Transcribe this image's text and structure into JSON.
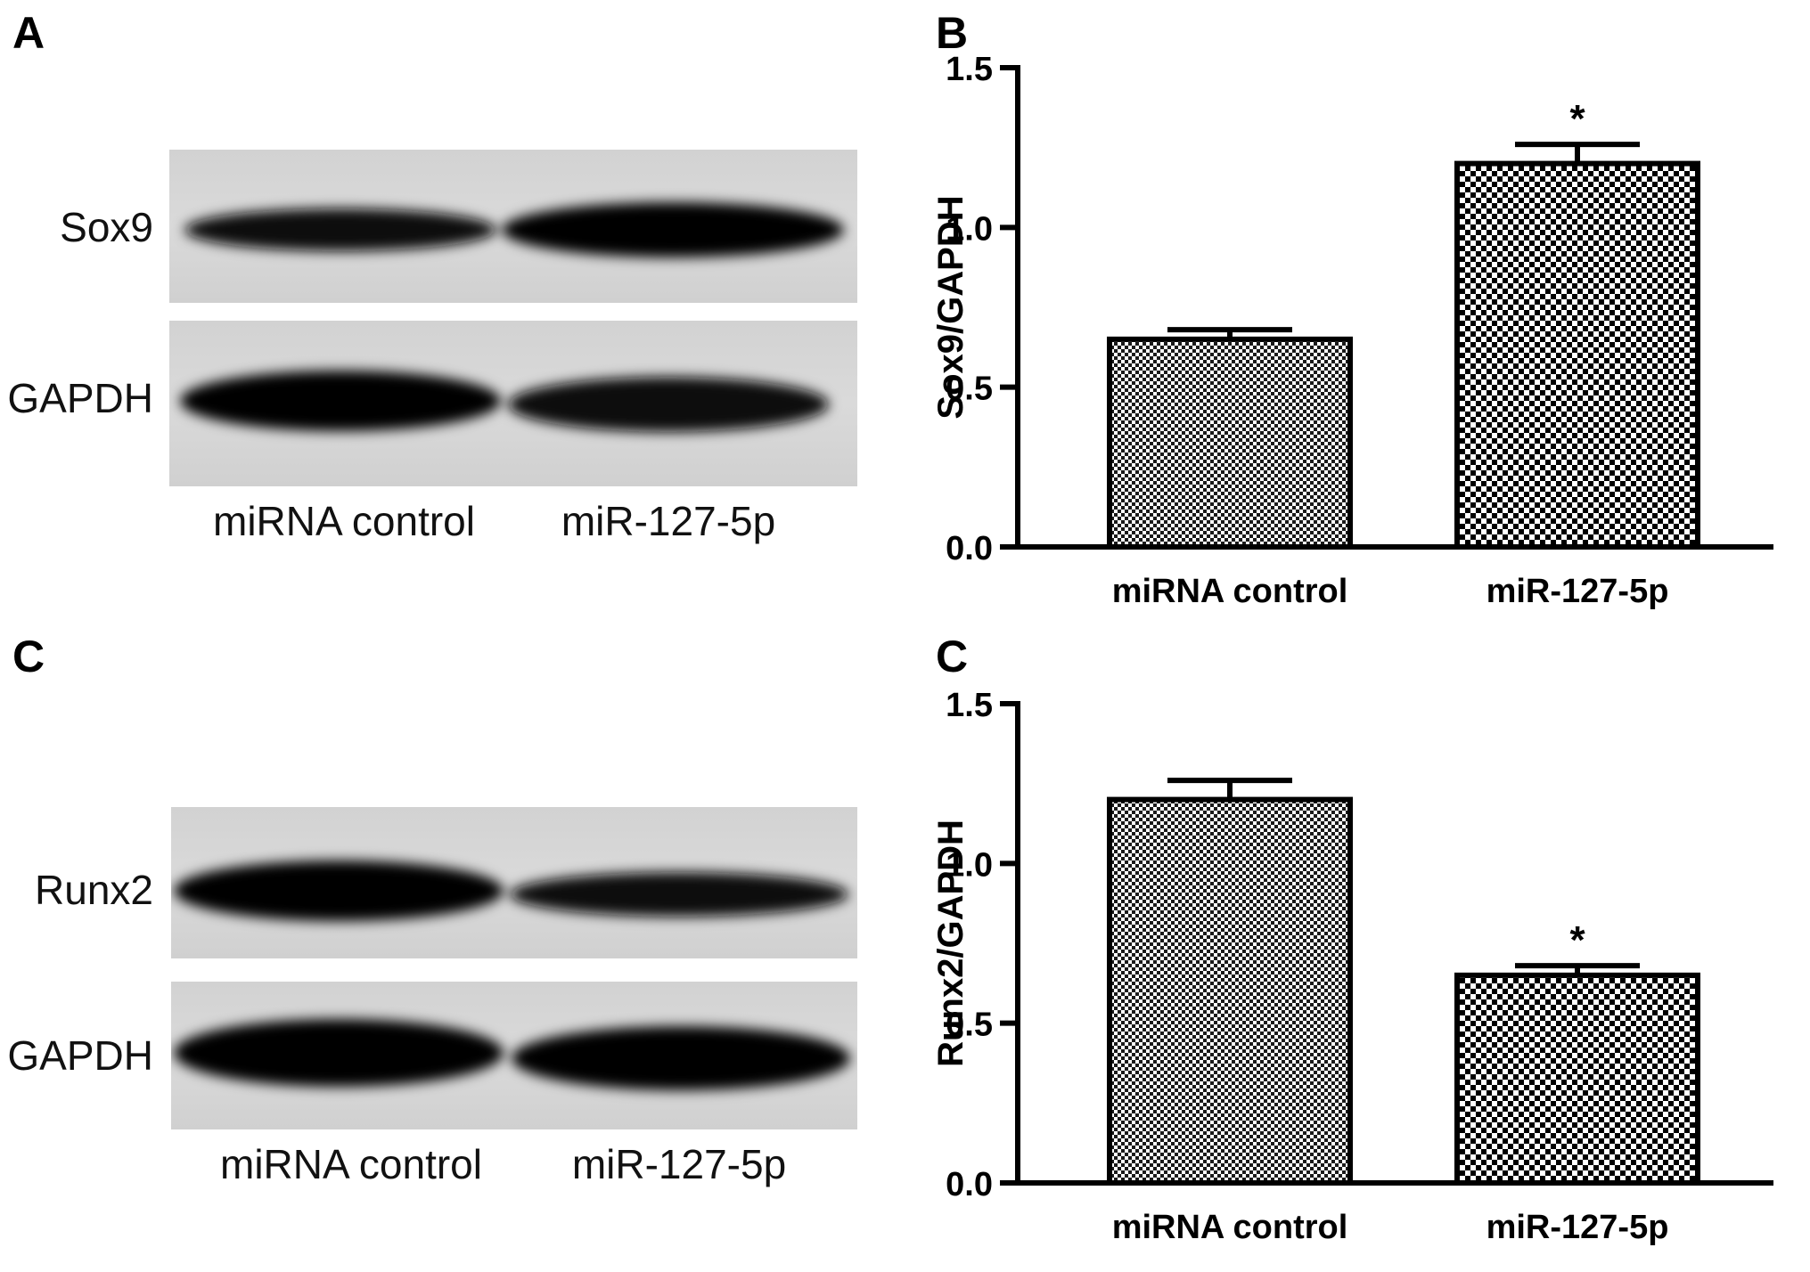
{
  "panels": {
    "a": "A",
    "b": "B",
    "c": "C",
    "d": "C"
  },
  "blot_top": {
    "row1_label": "Sox9",
    "row2_label": "GAPDH",
    "lanes": [
      "miRNA control",
      "miR-127-5p"
    ]
  },
  "blot_bottom": {
    "row1_label": "Runx2",
    "row2_label": "GAPDH",
    "lanes": [
      "miRNA control",
      "miR-127-5p"
    ]
  },
  "colors": {
    "membrane": "#d6d6d6",
    "band": "#0b0b0b",
    "axis": "#000000"
  },
  "chart_data": [
    {
      "type": "bar",
      "title": "",
      "categories": [
        "miRNA control",
        "miR-127-5p"
      ],
      "values": [
        0.65,
        1.2
      ],
      "errors": [
        0.03,
        0.06
      ],
      "significance": [
        "",
        "*"
      ],
      "xlabel": "",
      "ylabel": "Sox9/GAPDH",
      "ylim": [
        0,
        1.5
      ],
      "yticks": [
        "0.0",
        "0.5",
        "1.0",
        "1.5"
      ],
      "ytick_values": [
        0,
        0.5,
        1.0,
        1.5
      ],
      "bar_patterns": [
        "fine-checker",
        "coarse-checker"
      ]
    },
    {
      "type": "bar",
      "title": "",
      "categories": [
        "miRNA control",
        "miR-127-5p"
      ],
      "values": [
        1.2,
        0.65
      ],
      "errors": [
        0.06,
        0.03
      ],
      "significance": [
        "",
        "*"
      ],
      "xlabel": "",
      "ylabel": "Runx2/GAPDH",
      "ylim": [
        0,
        1.5
      ],
      "yticks": [
        "0.0",
        "0.5",
        "1.0",
        "1.5"
      ],
      "ytick_values": [
        0,
        0.5,
        1.0,
        1.5
      ],
      "bar_patterns": [
        "fine-checker",
        "coarse-checker"
      ]
    }
  ]
}
